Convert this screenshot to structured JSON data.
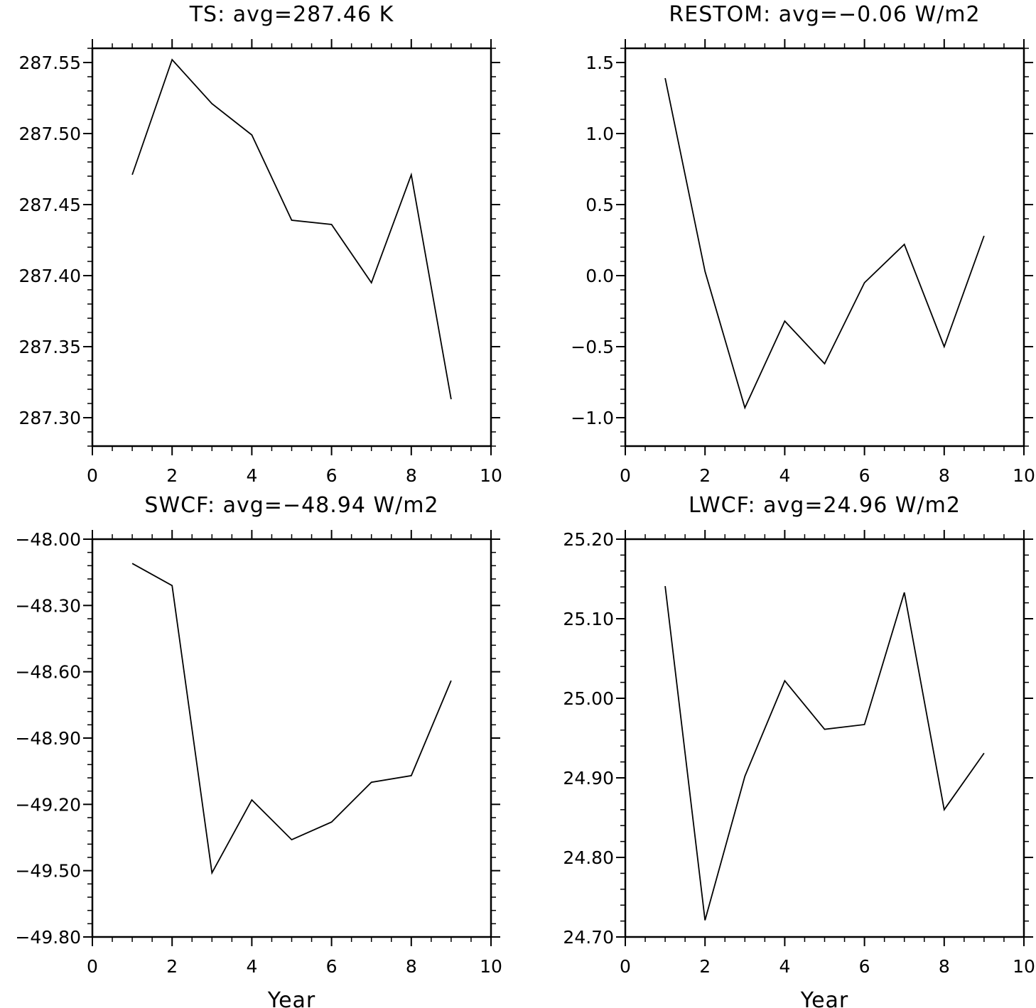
{
  "chart_data": [
    {
      "type": "line",
      "title": "TS: avg=287.46 K",
      "xlabel": "",
      "ylabel": "",
      "xlim": [
        0,
        10
      ],
      "ylim": [
        287.28,
        287.56
      ],
      "x_ticks": [
        "0",
        "2",
        "4",
        "6",
        "8",
        "10"
      ],
      "y_ticks": [
        "287.55",
        "287.50",
        "287.45",
        "287.40",
        "287.35",
        "287.30"
      ],
      "series": [
        {
          "x": [
            1,
            2,
            3,
            4,
            5,
            6,
            7,
            8,
            9
          ],
          "values": [
            287.471,
            287.552,
            287.521,
            287.499,
            287.439,
            287.436,
            287.395,
            287.471,
            287.313
          ]
        }
      ],
      "grid": false,
      "line_color": "#000000"
    },
    {
      "type": "line",
      "title": "RESTOM: avg=−0.06 W/m2",
      "xlabel": "",
      "ylabel": "",
      "xlim": [
        0,
        10
      ],
      "ylim": [
        -1.2,
        1.6
      ],
      "x_ticks": [
        "0",
        "2",
        "4",
        "6",
        "8",
        "10"
      ],
      "y_ticks": [
        "1.5",
        "1.0",
        "0.5",
        "0.0",
        "−0.5",
        "−1.0"
      ],
      "series": [
        {
          "x": [
            1,
            2,
            3,
            4,
            5,
            6,
            7,
            8,
            9
          ],
          "values": [
            1.39,
            0.03,
            -0.93,
            -0.32,
            -0.62,
            -0.05,
            0.22,
            -0.5,
            0.28
          ]
        }
      ],
      "grid": false,
      "line_color": "#000000"
    },
    {
      "type": "line",
      "title": "SWCF: avg=−48.94 W/m2",
      "xlabel": "Year",
      "ylabel": "",
      "xlim": [
        0,
        10
      ],
      "ylim": [
        -49.8,
        -48.0
      ],
      "x_ticks": [
        "0",
        "2",
        "4",
        "6",
        "8",
        "10"
      ],
      "y_ticks": [
        "−48.00",
        "−48.30",
        "−48.60",
        "−48.90",
        "−49.20",
        "−49.50",
        "−49.80"
      ],
      "series": [
        {
          "x": [
            1,
            2,
            3,
            4,
            5,
            6,
            7,
            8,
            9
          ],
          "values": [
            -48.11,
            -48.21,
            -49.51,
            -49.18,
            -49.36,
            -49.28,
            -49.1,
            -49.07,
            -48.64
          ]
        }
      ],
      "grid": false,
      "line_color": "#000000"
    },
    {
      "type": "line",
      "title": "LWCF: avg=24.96 W/m2",
      "xlabel": "Year",
      "ylabel": "",
      "xlim": [
        0,
        10
      ],
      "ylim": [
        24.7,
        25.2
      ],
      "x_ticks": [
        "0",
        "2",
        "4",
        "6",
        "8",
        "10"
      ],
      "y_ticks": [
        "25.20",
        "25.10",
        "25.00",
        "24.90",
        "24.80",
        "24.70"
      ],
      "series": [
        {
          "x": [
            1,
            2,
            3,
            4,
            5,
            6,
            7,
            8,
            9
          ],
          "values": [
            25.141,
            24.721,
            24.902,
            25.022,
            24.961,
            24.967,
            25.133,
            24.86,
            24.931
          ]
        }
      ],
      "grid": false,
      "line_color": "#000000"
    }
  ]
}
